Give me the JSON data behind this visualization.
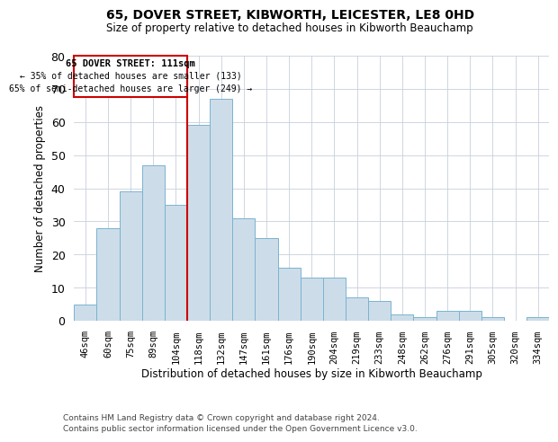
{
  "title1": "65, DOVER STREET, KIBWORTH, LEICESTER, LE8 0HD",
  "title2": "Size of property relative to detached houses in Kibworth Beauchamp",
  "xlabel": "Distribution of detached houses by size in Kibworth Beauchamp",
  "ylabel": "Number of detached properties",
  "footer1": "Contains HM Land Registry data © Crown copyright and database right 2024.",
  "footer2": "Contains public sector information licensed under the Open Government Licence v3.0.",
  "categories": [
    "46sqm",
    "60sqm",
    "75sqm",
    "89sqm",
    "104sqm",
    "118sqm",
    "132sqm",
    "147sqm",
    "161sqm",
    "176sqm",
    "190sqm",
    "204sqm",
    "219sqm",
    "233sqm",
    "248sqm",
    "262sqm",
    "276sqm",
    "291sqm",
    "305sqm",
    "320sqm",
    "334sqm"
  ],
  "values": [
    5,
    28,
    39,
    47,
    35,
    59,
    67,
    31,
    25,
    16,
    13,
    13,
    7,
    6,
    2,
    1,
    3,
    3,
    1,
    0,
    1
  ],
  "bar_color": "#ccdde9",
  "bar_edge_color": "#7ab3d0",
  "grid_color": "#c8d0dc",
  "annotation_box_color": "#cc0000",
  "annotation_text1": "65 DOVER STREET: 111sqm",
  "annotation_text2": "← 35% of detached houses are smaller (133)",
  "annotation_text3": "65% of semi-detached houses are larger (249) →",
  "ylim": [
    0,
    80
  ],
  "yticks": [
    0,
    10,
    20,
    30,
    40,
    50,
    60,
    70,
    80
  ],
  "red_line_color": "#cc0000",
  "background_color": "#ffffff",
  "red_line_bar_index": 4.5
}
